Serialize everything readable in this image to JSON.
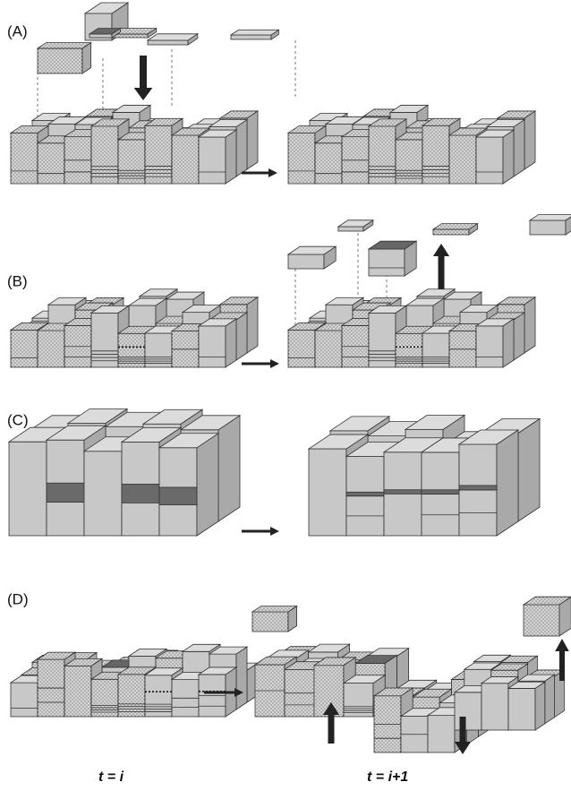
{
  "panels": [
    {
      "label": "(A)"
    },
    {
      "label": "(B)"
    },
    {
      "label": "(C)"
    },
    {
      "label": "(D)"
    }
  ],
  "time_labels": [
    "t = i",
    "t = i+1"
  ]
}
